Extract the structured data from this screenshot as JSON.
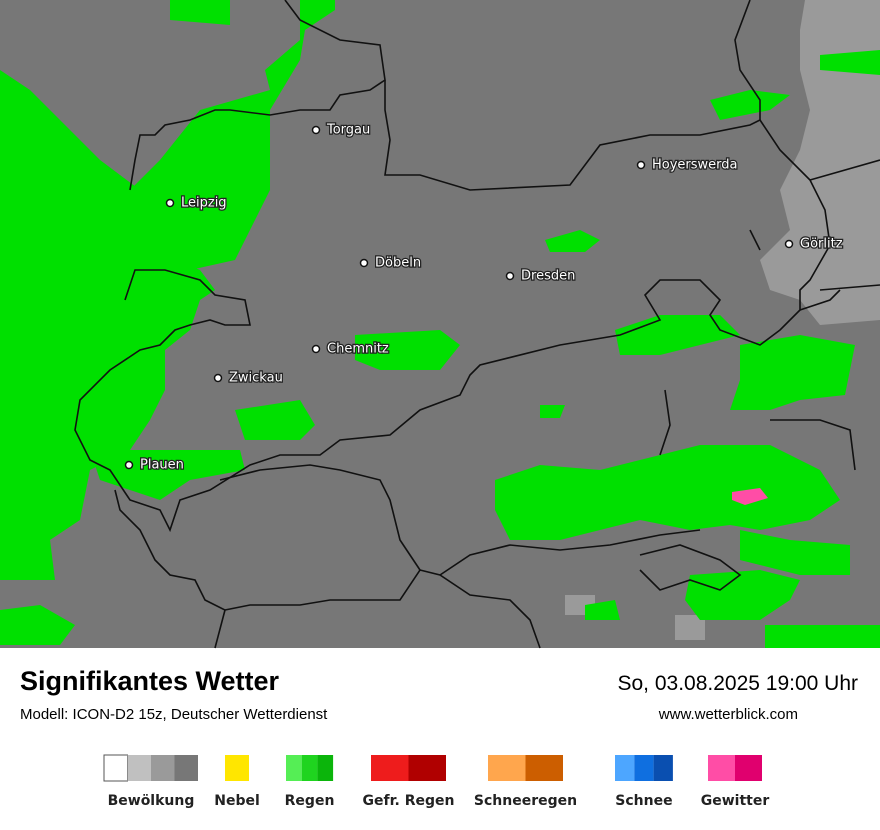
{
  "map": {
    "cities": [
      "Torgau",
      "Leipzig",
      "Hoyerswerda",
      "Görlitz",
      "Döbeln",
      "Dresden",
      "Chemnitz",
      "Zwickau",
      "Plauen"
    ]
  },
  "footer": {
    "title": "Signifikantes Wetter",
    "subtitle": "Modell: ICON-D2 15z, Deutscher Wetterdienst",
    "datetime": "So, 03.08.2025 19:00 Uhr",
    "url": "www.wetterblick.com"
  },
  "legend": [
    {
      "label": "Bewölkung",
      "colors": [
        "#ffffff",
        "#c0c0c0",
        "#9a9a9a",
        "#777777"
      ]
    },
    {
      "label": "Nebel",
      "colors": [
        "#ffe600"
      ]
    },
    {
      "label": "Regen",
      "colors": [
        "#55ee55",
        "#1fd41f",
        "#0bb50b"
      ]
    },
    {
      "label": "Gefr. Regen",
      "colors": [
        "#ee1c1c",
        "#b00000"
      ]
    },
    {
      "label": "Schneeregen",
      "colors": [
        "#ffa64d",
        "#cc5e00"
      ]
    },
    {
      "label": "Schnee",
      "colors": [
        "#4da6ff",
        "#0f6fe0",
        "#0a4fb0"
      ]
    },
    {
      "label": "Gewitter",
      "colors": [
        "#ff4da6",
        "#e0006e"
      ]
    }
  ]
}
